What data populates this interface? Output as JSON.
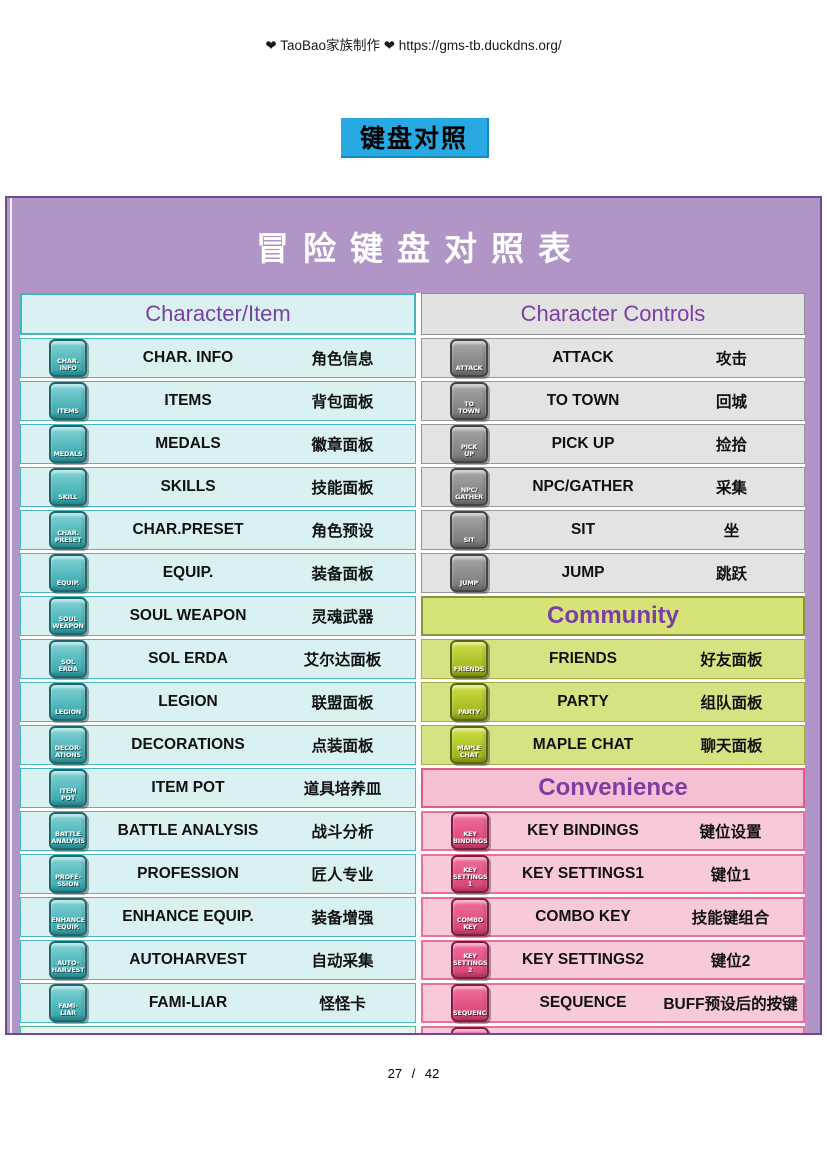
{
  "page": {
    "header": "❤ TaoBao家族制作 ❤ https://gms-tb.duckdns.org/",
    "section_button_label": "键盘对照",
    "footer": "27 / 42"
  },
  "colors": {
    "accent_blue": "#29a9e1",
    "panel_purple": "#b295c7",
    "heading_purple": "#7b3fa2",
    "cyan_section": "#d9f1f1",
    "gray_section": "#e3e3e3",
    "green_section": "#d7e382",
    "pink_section": "#f7c9da"
  },
  "table": {
    "title": "冒险键盘对照表",
    "left_column": {
      "header": "Character/Item",
      "rows": [
        {
          "key": "CHAR.\nINFO",
          "en": "CHAR. INFO",
          "zh": "角色信息"
        },
        {
          "key": "ITEMS",
          "en": "ITEMS",
          "zh": "背包面板"
        },
        {
          "key": "MEDALS",
          "en": "MEDALS",
          "zh": "徽章面板"
        },
        {
          "key": "SKILL",
          "en": "SKILLS",
          "zh": "技能面板"
        },
        {
          "key": "CHAR.\nPRESET",
          "en": "CHAR.PRESET",
          "zh": "角色预设"
        },
        {
          "key": "EQUIP.",
          "en": "EQUIP.",
          "zh": "装备面板"
        },
        {
          "key": "SOUL\nWEAPON",
          "en": "SOUL WEAPON",
          "zh": "灵魂武器"
        },
        {
          "key": "SOL\nERDA",
          "en": "SOL ERDA",
          "zh": "艾尔达面板"
        },
        {
          "key": "LEGION",
          "en": "LEGION",
          "zh": "联盟面板"
        },
        {
          "key": "DECOR-\nATIONS",
          "en": "DECORATIONS",
          "zh": "点装面板"
        },
        {
          "key": "ITEM\nPOT",
          "en": "ITEM POT",
          "zh": "道具培养皿"
        },
        {
          "key": "BATTLE\nANALYSIS",
          "en": "BATTLE ANALYSIS",
          "zh": "战斗分析"
        },
        {
          "key": "PROFE-\nSSION",
          "en": "PROFESSION",
          "zh": "匠人专业"
        },
        {
          "key": "ENHANCE\nEQUIP.",
          "en": "ENHANCE EQUIP.",
          "zh": "装备增强"
        },
        {
          "key": "AUTO-\nHARVEST",
          "en": "AUTOHARVEST",
          "zh": "自动采集"
        },
        {
          "key": "FAMI-\nLIAR",
          "en": "FAMI-LIAR",
          "zh": "怪怪卡"
        }
      ]
    },
    "right_column": {
      "header": "Character Controls",
      "groups": [
        {
          "theme": "gray",
          "rows": [
            {
              "key": "ATTACK",
              "en": "ATTACK",
              "zh": "攻击"
            },
            {
              "key": "TO\nTOWN",
              "en": "TO TOWN",
              "zh": "回城"
            },
            {
              "key": "PICK\nUP",
              "en": "PICK UP",
              "zh": "捡拾"
            },
            {
              "key": "NPC/\nGATHER",
              "en": "NPC/GATHER",
              "zh": "采集"
            },
            {
              "key": "SIT",
              "en": "SIT",
              "zh": "坐"
            },
            {
              "key": "JUMP",
              "en": "JUMP",
              "zh": "跳跃"
            }
          ]
        },
        {
          "header": "Community",
          "theme": "green",
          "rows": [
            {
              "key": "FRIENDS",
              "en": "FRIENDS",
              "zh": "好友面板"
            },
            {
              "key": "PARTY",
              "en": "PARTY",
              "zh": "组队面板"
            },
            {
              "key": "MAPLE\nCHAT",
              "en": "MAPLE CHAT",
              "zh": "聊天面板"
            }
          ]
        },
        {
          "header": "Convenience",
          "theme": "pink",
          "rows": [
            {
              "key": "KEY\nBINDINGS",
              "en": "KEY BINDINGS",
              "zh": "键位设置"
            },
            {
              "key": "KEY\nSETTINGS\n1",
              "en": "KEY SETTINGS1",
              "zh": "键位1"
            },
            {
              "key": "COMBO\nKEY",
              "en": "COMBO KEY",
              "zh": "技能键组合"
            },
            {
              "key": "KEY\nSETTINGS\n2",
              "en": "KEY SETTINGS2",
              "zh": "键位2"
            },
            {
              "key": "SEQUENCE",
              "en": "SEQUENCE",
              "zh": "BUFF预设后的按键"
            }
          ]
        }
      ]
    }
  }
}
